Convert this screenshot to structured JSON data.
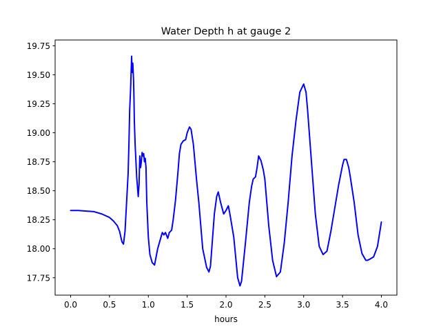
{
  "chart_data": {
    "type": "line",
    "title": "Water Depth h at gauge 2",
    "xlabel": "hours",
    "ylabel": "",
    "xlim": [
      -0.2,
      4.2
    ],
    "ylim": [
      17.6,
      19.8
    ],
    "xticks": [
      0.0,
      0.5,
      1.0,
      1.5,
      2.0,
      2.5,
      3.0,
      3.5,
      4.0
    ],
    "xtick_labels": [
      "0.0",
      "0.5",
      "1.0",
      "1.5",
      "2.0",
      "2.5",
      "3.0",
      "3.5",
      "4.0"
    ],
    "yticks": [
      17.75,
      18.0,
      18.25,
      18.5,
      18.75,
      19.0,
      19.25,
      19.5,
      19.75
    ],
    "ytick_labels": [
      "17.75",
      "18.00",
      "18.25",
      "18.50",
      "18.75",
      "19.00",
      "19.25",
      "19.50",
      "19.75"
    ],
    "grid": false,
    "line_color": "#0000ff",
    "series": [
      {
        "x": [
          0.0,
          0.1,
          0.2,
          0.3,
          0.4,
          0.5,
          0.55,
          0.6,
          0.63,
          0.66,
          0.68,
          0.7,
          0.72,
          0.74,
          0.75,
          0.76,
          0.77,
          0.78,
          0.785,
          0.79,
          0.8,
          0.81,
          0.815,
          0.82,
          0.83,
          0.85,
          0.87,
          0.88,
          0.89,
          0.9,
          0.91,
          0.92,
          0.93,
          0.94,
          0.95,
          0.96,
          0.97,
          0.98,
          1.0,
          1.02,
          1.05,
          1.08,
          1.1,
          1.12,
          1.15,
          1.18,
          1.2,
          1.22,
          1.25,
          1.27,
          1.3,
          1.32,
          1.35,
          1.38,
          1.4,
          1.42,
          1.45,
          1.48,
          1.5,
          1.53,
          1.55,
          1.58,
          1.62,
          1.65,
          1.7,
          1.75,
          1.78,
          1.8,
          1.85,
          1.88,
          1.9,
          1.93,
          1.97,
          2.0,
          2.03,
          2.05,
          2.1,
          2.15,
          2.18,
          2.2,
          2.25,
          2.3,
          2.33,
          2.35,
          2.38,
          2.4,
          2.42,
          2.45,
          2.48,
          2.5,
          2.55,
          2.6,
          2.65,
          2.7,
          2.75,
          2.8,
          2.85,
          2.9,
          2.95,
          3.0,
          3.03,
          3.05,
          3.1,
          3.15,
          3.2,
          3.25,
          3.3,
          3.35,
          3.4,
          3.45,
          3.5,
          3.52,
          3.55,
          3.58,
          3.6,
          3.65,
          3.7,
          3.75,
          3.8,
          3.82,
          3.85,
          3.9,
          3.95,
          4.0
        ],
        "values": [
          18.33,
          18.33,
          18.325,
          18.32,
          18.3,
          18.27,
          18.24,
          18.2,
          18.15,
          18.06,
          18.04,
          18.15,
          18.4,
          18.65,
          18.9,
          19.2,
          19.35,
          19.55,
          19.66,
          19.52,
          19.6,
          19.45,
          19.3,
          19.1,
          18.9,
          18.62,
          18.45,
          18.55,
          18.8,
          18.7,
          18.75,
          18.83,
          18.8,
          18.82,
          18.75,
          18.78,
          18.7,
          18.4,
          18.1,
          17.95,
          17.88,
          17.86,
          17.93,
          18.0,
          18.07,
          18.14,
          18.12,
          18.14,
          18.09,
          18.14,
          18.16,
          18.25,
          18.42,
          18.65,
          18.82,
          18.9,
          18.93,
          18.94,
          19.0,
          19.05,
          19.03,
          18.9,
          18.6,
          18.4,
          18.0,
          17.84,
          17.8,
          17.85,
          18.3,
          18.45,
          18.49,
          18.4,
          18.3,
          18.33,
          18.37,
          18.3,
          18.1,
          17.75,
          17.68,
          17.72,
          18.05,
          18.4,
          18.54,
          18.6,
          18.62,
          18.7,
          18.8,
          18.76,
          18.68,
          18.6,
          18.2,
          17.9,
          17.76,
          17.8,
          18.05,
          18.4,
          18.8,
          19.1,
          19.35,
          19.42,
          19.35,
          19.2,
          18.75,
          18.3,
          18.02,
          17.95,
          17.98,
          18.15,
          18.35,
          18.55,
          18.72,
          18.77,
          18.77,
          18.7,
          18.62,
          18.4,
          18.12,
          17.96,
          17.9,
          17.9,
          17.91,
          17.93,
          18.02,
          18.23
        ]
      }
    ]
  }
}
